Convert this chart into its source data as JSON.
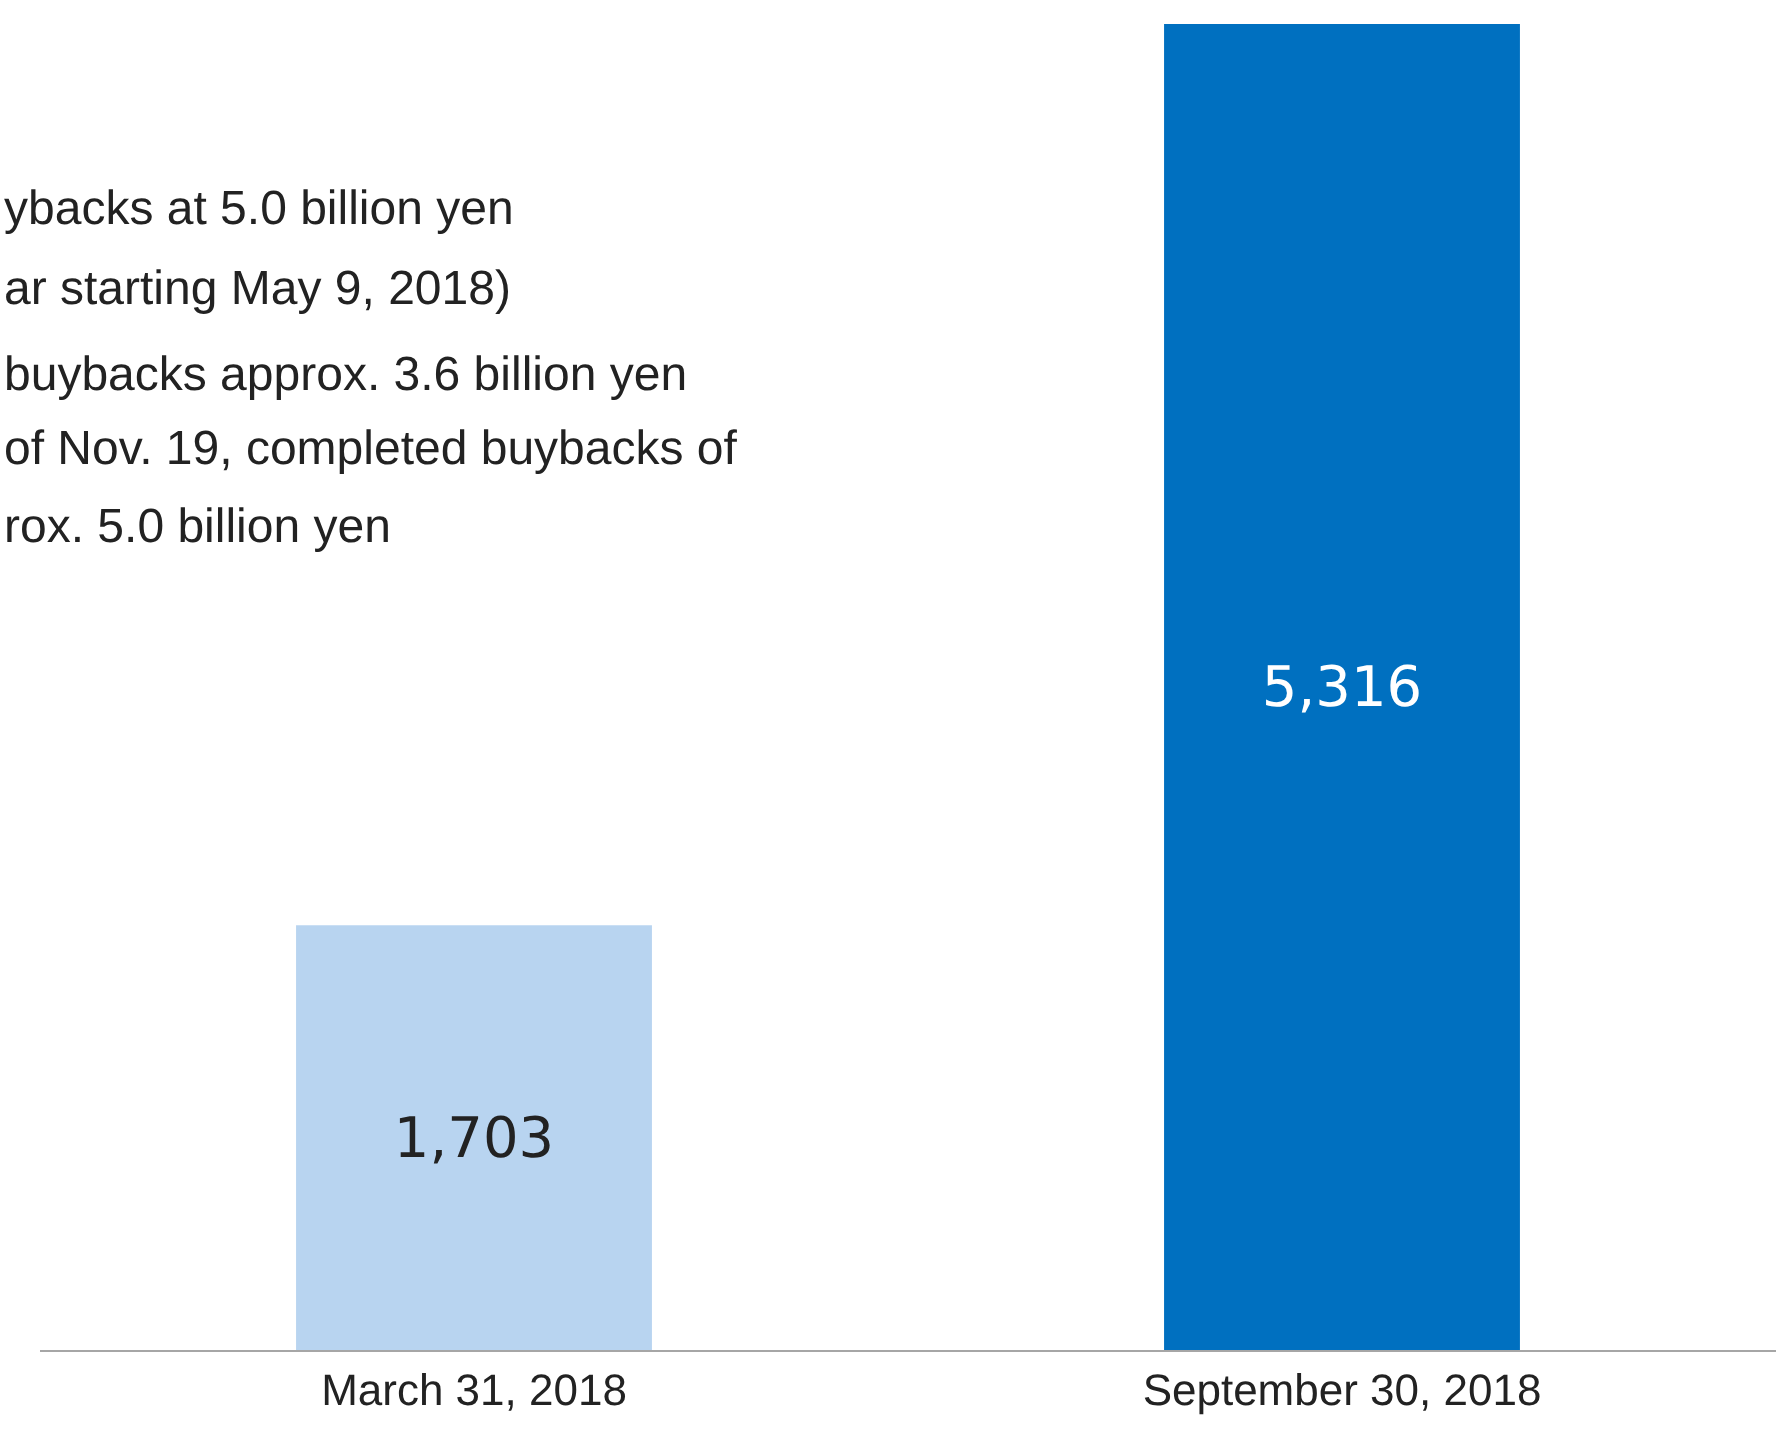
{
  "chart_data": {
    "type": "bar",
    "categories": [
      "March 31, 2018",
      "September 30, 2018"
    ],
    "values": [
      1703,
      5316
    ],
    "colors": [
      "#b8d4f0",
      "#0070c0"
    ],
    "data_labels": true,
    "value_labels": [
      "1,703",
      "5,316"
    ],
    "annotations": [
      "ybacks at 5.0 billion yen",
      "ar starting May 9, 2018)",
      "buybacks approx. 3.6 billion yen",
      "of Nov. 19, completed buybacks of",
      "rox. 5.0 billion yen"
    ]
  }
}
